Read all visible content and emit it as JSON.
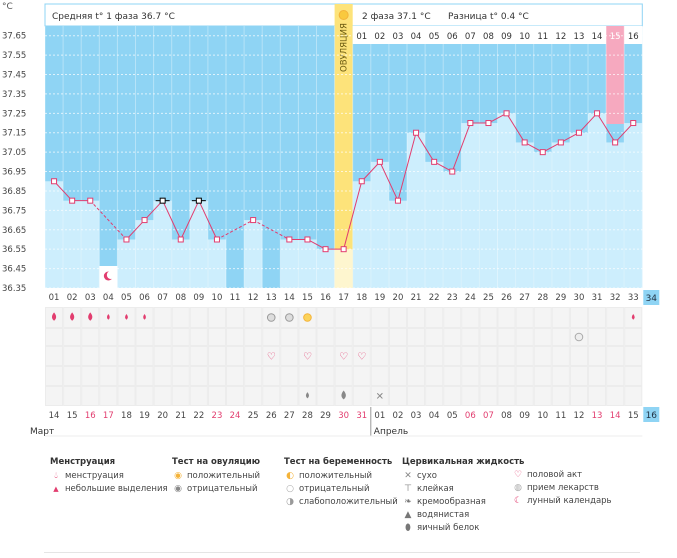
{
  "header": {
    "phase1": "Средняя t° 1 фаза 36.7 °C",
    "phase2": "2 фаза 37.1 °C",
    "diff": "Разница t° 0.4 °C",
    "ovulation_label": "ОВУЛЯЦИЯ",
    "degree_unit": "°C"
  },
  "chart_data": {
    "type": "line",
    "ylabel": "°C",
    "ylim": [
      36.35,
      37.7
    ],
    "yticks": [
      "37.65",
      "37.55",
      "37.45",
      "37.35",
      "37.25",
      "37.15",
      "37.05",
      "36.95",
      "36.85",
      "36.75",
      "36.65",
      "36.55",
      "36.45",
      "36.35"
    ],
    "cycle_days": [
      "01",
      "02",
      "03",
      "04",
      "05",
      "06",
      "07",
      "08",
      "09",
      "10",
      "11",
      "12",
      "13",
      "14",
      "15",
      "16",
      "17",
      "18",
      "19",
      "20",
      "21",
      "22",
      "23",
      "24",
      "25",
      "26",
      "27",
      "28",
      "29",
      "30",
      "31",
      "32",
      "33"
    ],
    "phase2_days": [
      "01",
      "02",
      "03",
      "04",
      "05",
      "06",
      "07",
      "08",
      "09",
      "10",
      "11",
      "12",
      "13",
      "14",
      "15",
      "16"
    ],
    "dates": [
      "14",
      "15",
      "16",
      "17",
      "18",
      "19",
      "20",
      "21",
      "22",
      "23",
      "24",
      "25",
      "26",
      "27",
      "28",
      "29",
      "30",
      "31",
      "01",
      "02",
      "03",
      "04",
      "05",
      "06",
      "07",
      "08",
      "09",
      "10",
      "11",
      "12",
      "13",
      "14",
      "15"
    ],
    "red_dates": [
      2,
      3,
      9,
      10,
      16,
      17,
      23,
      24,
      30,
      31
    ],
    "temperatures": [
      36.9,
      36.8,
      36.8,
      null,
      36.6,
      36.7,
      36.8,
      36.6,
      36.8,
      36.6,
      null,
      36.7,
      null,
      36.6,
      36.6,
      36.55,
      36.55,
      36.9,
      37.0,
      36.8,
      37.15,
      37.0,
      36.95,
      37.2,
      37.2,
      37.25,
      37.1,
      37.05,
      37.1,
      37.15,
      37.25,
      37.1,
      37.2
    ],
    "marked_days": [
      7,
      9
    ],
    "ovulation_day": 17,
    "total_days": "34",
    "phase2_length": "16",
    "months": [
      "Март",
      "Апрель"
    ]
  },
  "legend": {
    "menstruation": {
      "title": "Менструация",
      "items": [
        "менструация",
        "небольшие выделения"
      ]
    },
    "ovulation_test": {
      "title": "Тест на овуляцию",
      "items": [
        "положительный",
        "отрицательный"
      ]
    },
    "pregnancy_test": {
      "title": "Тест на беременность",
      "items": [
        "положительный",
        "отрицательный",
        "слабоположительный"
      ]
    },
    "cervical": {
      "title": "Цервикальная жидкость",
      "items": [
        "сухо",
        "клейкая",
        "кремообразная",
        "водянистая",
        "яичный белок"
      ]
    },
    "other": {
      "items": [
        "половой акт",
        "прием лекарств",
        "лунный календарь"
      ]
    }
  },
  "colors": {
    "bar": "#cdeefd",
    "bg": "#8fd4f4",
    "line": "#e23d6f",
    "ovulation": "#fde37a",
    "highlight": "#f6a9bf",
    "accent": "#8fd4f4"
  }
}
